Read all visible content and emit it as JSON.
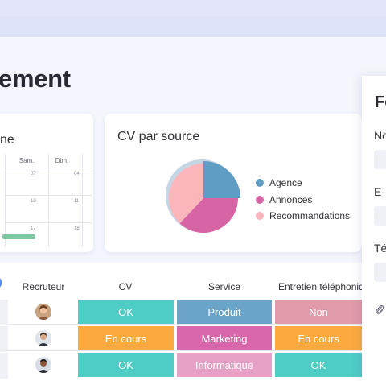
{
  "page": {
    "title": "ement"
  },
  "calendar": {
    "title": "ne",
    "days": [
      "Sam.",
      "Dim."
    ],
    "day_numbers": [
      "07",
      "04",
      "10",
      "11",
      "17",
      "18"
    ]
  },
  "pie_card": {
    "title": "CV par source",
    "legend": [
      {
        "label": "Agence",
        "color": "#5f9ec4"
      },
      {
        "label": "Annonces",
        "color": "#d765a6"
      },
      {
        "label": "Recommandations",
        "color": "#fbb6bb"
      }
    ]
  },
  "chart_data": {
    "type": "pie",
    "title": "CV par source",
    "categories": [
      "Agence",
      "Annonces",
      "Recommandations"
    ],
    "values": [
      25,
      37,
      38
    ],
    "colors": [
      "#5f9ec4",
      "#d765a6",
      "#fbb6bb"
    ]
  },
  "table": {
    "headers": {
      "recruteur": "Recruteur",
      "cv": "CV",
      "service": "Service",
      "entretien": "Entretien téléphonique"
    },
    "rows": [
      {
        "cv": {
          "label": "OK",
          "color": "#4eccc6"
        },
        "service": {
          "label": "Produit",
          "color": "#6ba4c9"
        },
        "entretien": {
          "label": "Non",
          "color": "#e19aa8"
        }
      },
      {
        "cv": {
          "label": "En cours",
          "color": "#fbaa3f"
        },
        "service": {
          "label": "Marketing",
          "color": "#d868ab"
        },
        "entretien": {
          "label": "En cours",
          "color": "#fbaa3f"
        }
      },
      {
        "cv": {
          "label": "OK",
          "color": "#4eccc6"
        },
        "service": {
          "label": "Informatique",
          "color": "#e7a0c6"
        },
        "entretien": {
          "label": "OK",
          "color": "#4eccc6"
        }
      }
    ]
  },
  "side_panel": {
    "heading": "Fo",
    "labels": [
      "No",
      "E-",
      "Té"
    ]
  }
}
